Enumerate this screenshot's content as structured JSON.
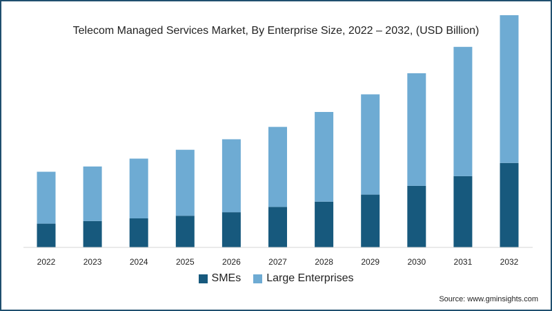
{
  "chart_data": {
    "type": "bar",
    "stacked": true,
    "title": "Telecom Managed Services Market, By Enterprise Size, 2022 – 2032, (USD Billion)",
    "xlabel": "",
    "ylabel": "",
    "categories": [
      "2022",
      "2023",
      "2024",
      "2025",
      "2026",
      "2027",
      "2028",
      "2029",
      "2030",
      "2031",
      "2032"
    ],
    "series": [
      {
        "name": "SMEs",
        "color": "#17597d",
        "values": [
          27,
          30,
          33,
          36,
          40,
          46,
          52,
          60,
          70,
          81,
          96
        ]
      },
      {
        "name": "Large Enterprises",
        "color": "#6eabd3",
        "values": [
          59,
          62,
          68,
          75,
          83,
          91,
          102,
          114,
          128,
          147,
          168
        ]
      }
    ],
    "ylim": [
      0,
      264
    ],
    "grid": false,
    "legend": "bottom",
    "source": "Source: www.gminsights.com"
  }
}
